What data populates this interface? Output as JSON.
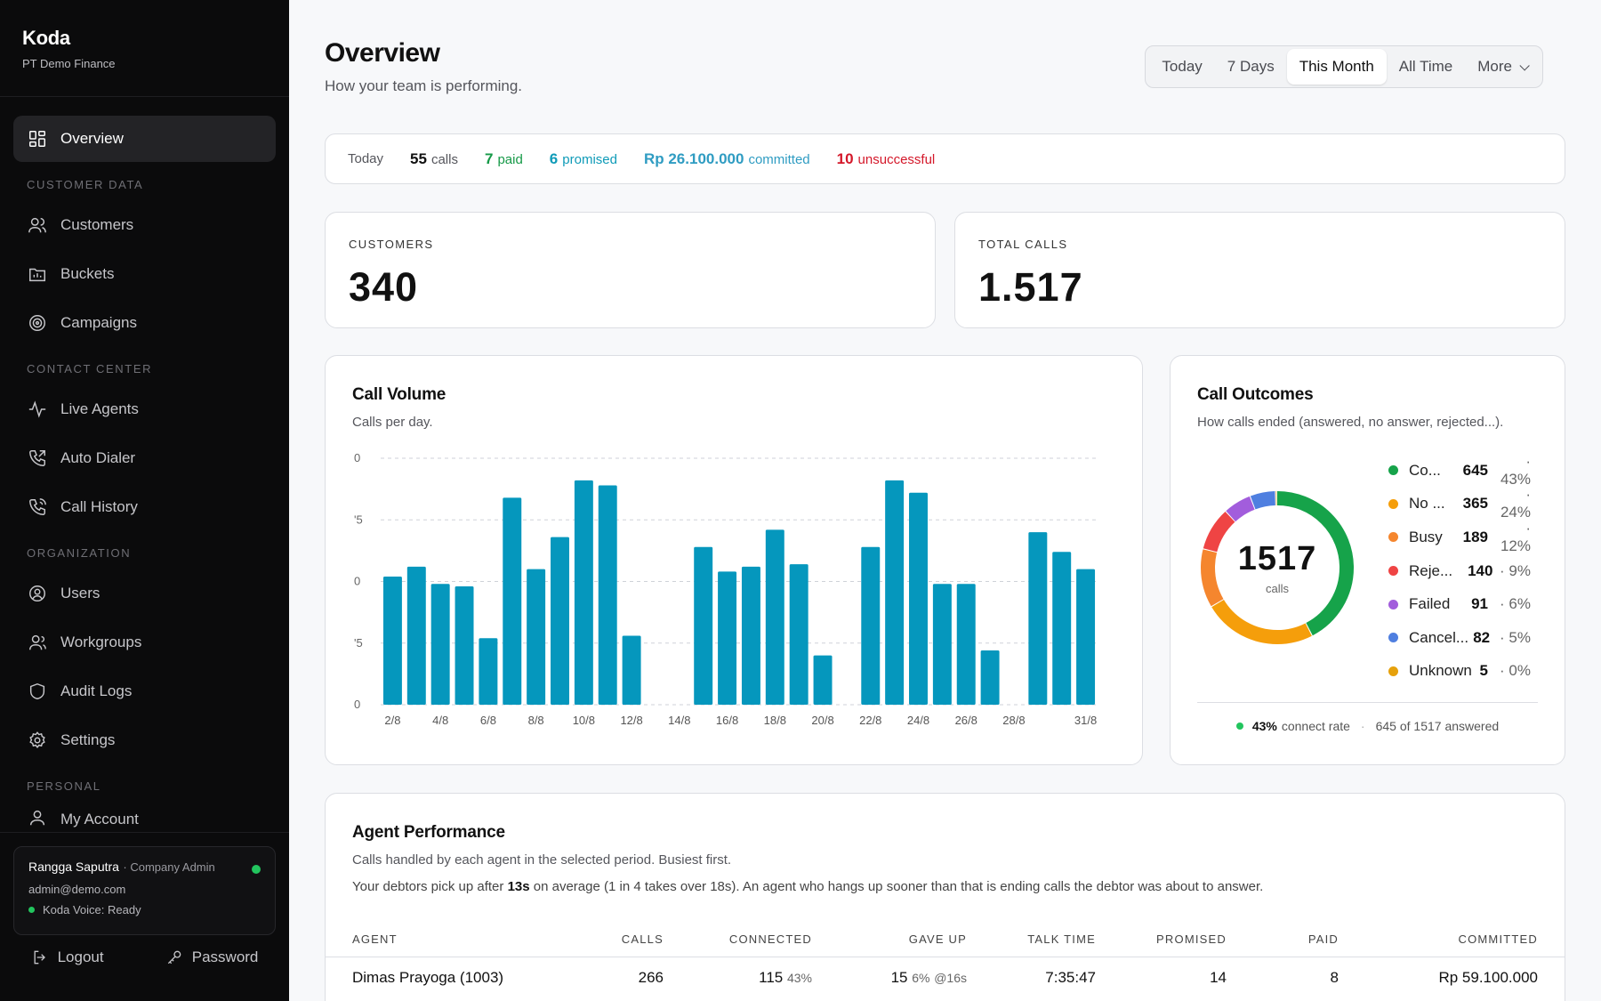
{
  "brand": {
    "name": "Koda",
    "org": "PT Demo Finance"
  },
  "nav": {
    "overview": "Overview",
    "section_customer": "CUSTOMER DATA",
    "customers": "Customers",
    "buckets": "Buckets",
    "campaigns": "Campaigns",
    "section_contact": "CONTACT CENTER",
    "live_agents": "Live Agents",
    "auto_dialer": "Auto Dialer",
    "call_history": "Call History",
    "section_org": "ORGANIZATION",
    "users": "Users",
    "workgroups": "Workgroups",
    "audit_logs": "Audit Logs",
    "settings": "Settings",
    "section_personal": "PERSONAL",
    "my_account": "My Account"
  },
  "user": {
    "name": "Rangga Saputra",
    "role": "· Company Admin",
    "email": "admin@demo.com",
    "voice": "Koda Voice: Ready",
    "logout": "Logout",
    "password": "Password"
  },
  "header": {
    "title": "Overview",
    "subtitle": "How your team is performing."
  },
  "range": {
    "today": "Today",
    "seven_days": "7 Days",
    "this_month": "This Month",
    "all_time": "All Time",
    "more": "More",
    "selected": "This Month"
  },
  "today_strip": {
    "label": "Today",
    "calls_n": "55",
    "calls_t": "calls",
    "paid_n": "7",
    "paid_t": "paid",
    "promised_n": "6",
    "promised_t": "promised",
    "committed_n": "Rp 26.100.000",
    "committed_t": "committed",
    "unsuccessful_n": "10",
    "unsuccessful_t": "unsuccessful"
  },
  "stats": {
    "customers_label": "CUSTOMERS",
    "customers_value": "340",
    "calls_label": "TOTAL CALLS",
    "calls_value": "1.517"
  },
  "call_volume": {
    "title": "Call Volume",
    "subtitle": "Calls per day."
  },
  "chart_data": {
    "type": "bar",
    "title": "Call Volume",
    "subtitle": "Calls per day.",
    "y_tick_labels": [
      "0",
      "'5",
      "0",
      "'5",
      "0"
    ],
    "ylim": [
      0,
      100
    ],
    "categories": [
      "2/8",
      "3/8",
      "4/8",
      "5/8",
      "6/8",
      "7/8",
      "8/8",
      "9/8",
      "10/8",
      "11/8",
      "12/8",
      "13/8",
      "14/8",
      "15/8",
      "16/8",
      "17/8",
      "18/8",
      "19/8",
      "20/8",
      "21/8",
      "22/8",
      "23/8",
      "24/8",
      "25/8",
      "26/8",
      "27/8",
      "28/8",
      "29/8",
      "30/8",
      "31/8"
    ],
    "x_tick_labels": [
      "2/8",
      "4/8",
      "6/8",
      "8/8",
      "10/8",
      "12/8",
      "14/8",
      "16/8",
      "18/8",
      "20/8",
      "22/8",
      "24/8",
      "26/8",
      "28/8",
      "31/8"
    ],
    "values": [
      52,
      56,
      49,
      48,
      27,
      84,
      55,
      68,
      91,
      89,
      28,
      0,
      0,
      64,
      54,
      56,
      71,
      57,
      20,
      0,
      64,
      91,
      86,
      49,
      49,
      22,
      0,
      70,
      62,
      55
    ],
    "color": "#0597bd",
    "grid": true
  },
  "outcomes": {
    "title": "Call Outcomes",
    "subtitle": "How calls ended (answered, no answer, rejected...).",
    "total": "1517",
    "total_unit": "calls",
    "items": [
      {
        "name": "Co...",
        "count": "645",
        "pct": "· 43%",
        "value": 645,
        "color": "#16a34a"
      },
      {
        "name": "No ...",
        "count": "365",
        "pct": "· 24%",
        "value": 365,
        "color": "#f59e0b"
      },
      {
        "name": "Busy",
        "count": "189",
        "pct": "· 12%",
        "value": 189,
        "color": "#f5862e"
      },
      {
        "name": "Reje...",
        "count": "140",
        "pct": "· 9%",
        "value": 140,
        "color": "#ef4444"
      },
      {
        "name": "Failed",
        "count": "91",
        "pct": "· 6%",
        "value": 91,
        "color": "#a25ddc"
      },
      {
        "name": "Cancel...",
        "count": "82",
        "pct": "· 5%",
        "value": 82,
        "color": "#4f7fe0"
      },
      {
        "name": "Unknown",
        "count": "5",
        "pct": "· 0%",
        "value": 5,
        "color": "#e6a10c"
      }
    ],
    "foot_rate": "43%",
    "foot_rate_text": "connect rate",
    "foot_sep": "·",
    "foot_answered": "645 of 1517 answered"
  },
  "agents": {
    "title": "Agent Performance",
    "subtitle": "Calls handled by each agent in the selected period. Busiest first.",
    "note_pre": "Your debtors pick up after ",
    "note_bold": "13s",
    "note_post": " on average (1 in 4 takes over 18s). An agent who hangs up sooner than that is ending calls the debtor was about to answer.",
    "columns": {
      "agent": "AGENT",
      "calls": "CALLS",
      "connected": "CONNECTED",
      "gave_up": "GAVE UP",
      "talk_time": "TALK TIME",
      "promised": "PROMISED",
      "paid": "PAID",
      "committed": "COMMITTED"
    },
    "rows": [
      {
        "agent": "Dimas Prayoga (1003)",
        "calls": "266",
        "connected": "115",
        "connected_pct": "43%",
        "gave_up": "15",
        "gave_up_pct": "6%",
        "gave_up_at": "@16s",
        "talk_time": "7:35:47",
        "promised": "14",
        "paid": "8",
        "committed": "Rp 59.100.000"
      }
    ]
  }
}
